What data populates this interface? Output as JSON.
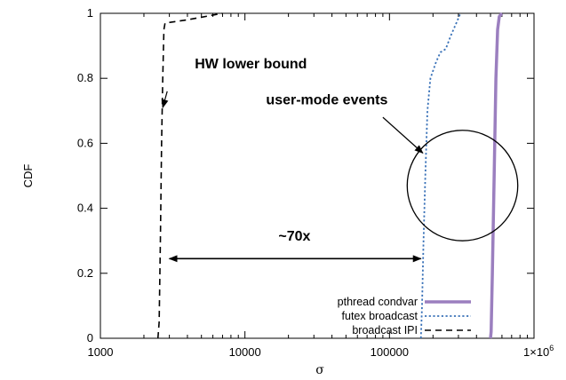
{
  "chart_data": {
    "type": "line",
    "title": "",
    "xlabel": "σ",
    "ylabel": "CDF",
    "xscale": "log",
    "xlim": [
      1000,
      1000000
    ],
    "ylim": [
      0,
      1
    ],
    "x_tick_labels": [
      "1000",
      "10000",
      "100000"
    ],
    "x_tick_values": [
      1000,
      10000,
      100000
    ],
    "x_last_tick": {
      "value": 1000000,
      "base": "1×10",
      "exp": "6"
    },
    "y_tick_labels": [
      "0",
      "0.2",
      "0.4",
      "0.6",
      "0.8",
      "1"
    ],
    "y_tick_values": [
      0,
      0.2,
      0.4,
      0.6,
      0.8,
      1
    ],
    "grid": false,
    "legend_position": "bottom-right",
    "series": [
      {
        "name": "pthread condvar",
        "color": "#9b7fbf",
        "style": "solid-thick",
        "points": [
          [
            500000,
            0
          ],
          [
            505000,
            0.02
          ],
          [
            515000,
            0.2
          ],
          [
            530000,
            0.5
          ],
          [
            545000,
            0.8
          ],
          [
            560000,
            0.95
          ],
          [
            575000,
            0.99
          ],
          [
            600000,
            1
          ]
        ]
      },
      {
        "name": "futex broadcast",
        "color": "#3a72b8",
        "style": "dotted",
        "points": [
          [
            165000,
            0
          ],
          [
            168000,
            0.1
          ],
          [
            172000,
            0.3
          ],
          [
            177000,
            0.5
          ],
          [
            183000,
            0.7
          ],
          [
            192000,
            0.8
          ],
          [
            210000,
            0.85
          ],
          [
            225000,
            0.88
          ],
          [
            245000,
            0.89
          ],
          [
            265000,
            0.93
          ],
          [
            290000,
            0.97
          ],
          [
            310000,
            1
          ]
        ]
      },
      {
        "name": "broadcast IPI",
        "color": "#000000",
        "style": "dashed",
        "points": [
          [
            2500,
            0
          ],
          [
            2550,
            0.05
          ],
          [
            2600,
            0.3
          ],
          [
            2650,
            0.6
          ],
          [
            2700,
            0.8
          ],
          [
            2750,
            0.95
          ],
          [
            2800,
            0.97
          ],
          [
            4000,
            0.98
          ],
          [
            7000,
            1
          ]
        ]
      }
    ],
    "annotations": [
      {
        "text": "HW lower bound",
        "type": "label-with-arrow",
        "arrow_from": [
          2900,
          0.76
        ],
        "arrow_to": [
          2700,
          0.71
        ],
        "at": [
          4500,
          0.83
        ]
      },
      {
        "text": "user-mode events",
        "type": "label-with-arrow",
        "arrow_from": [
          90000,
          0.68
        ],
        "arrow_to": [
          170000,
          0.57
        ],
        "at": [
          14000,
          0.72
        ]
      },
      {
        "text": "~70x",
        "type": "double-arrow",
        "from": [
          3000,
          0.245
        ],
        "to": [
          165000,
          0.245
        ],
        "at": [
          22000,
          0.3
        ]
      },
      {
        "text": "",
        "type": "circle",
        "center": [
          320000,
          0.47
        ],
        "radius_y": 0.17
      }
    ]
  }
}
